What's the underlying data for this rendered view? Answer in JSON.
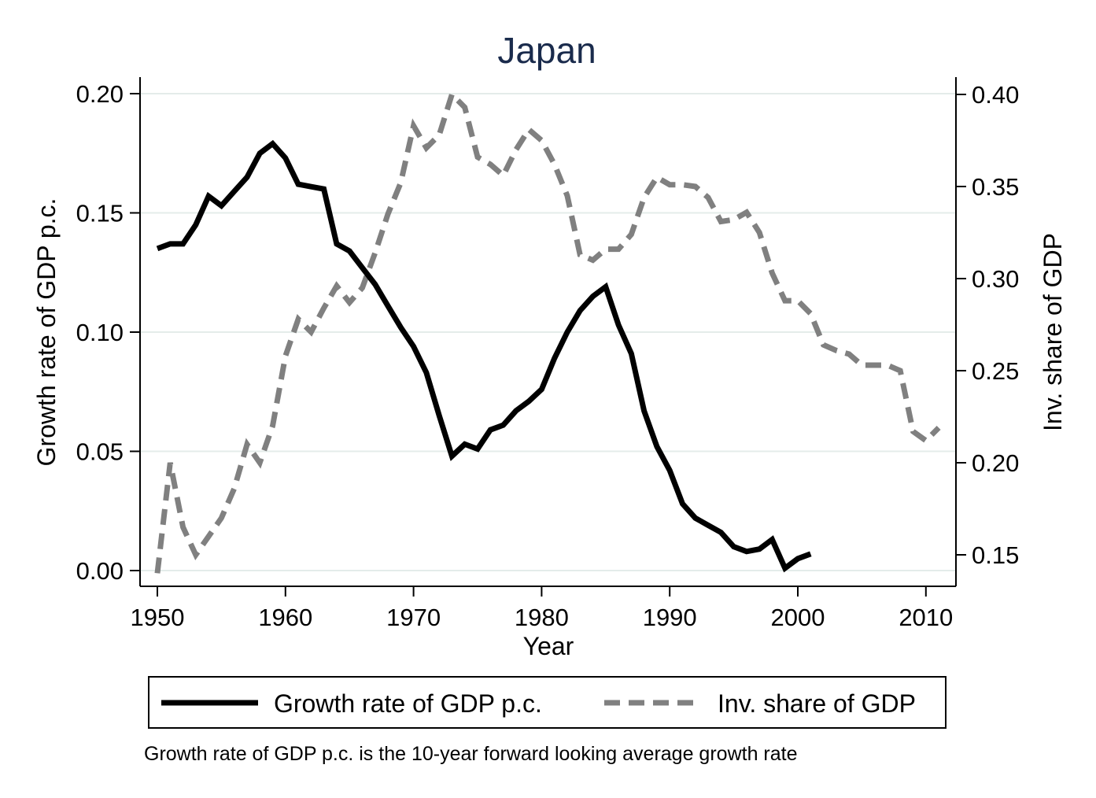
{
  "chart_data": {
    "type": "line",
    "title": "Japan",
    "xlabel": "Year",
    "ylabel": "Growth rate of GDP p.c.",
    "y2label": "Inv. share of GDP",
    "note": "Growth rate of GDP p.c. is the 10-year forward looking average growth rate",
    "xlim": [
      1950,
      2011
    ],
    "ylim": [
      0.0,
      0.2
    ],
    "y2lim": [
      0.15,
      0.4
    ],
    "x_ticks": [
      "1950",
      "1960",
      "1970",
      "1980",
      "1990",
      "2000",
      "2010"
    ],
    "y_ticks": [
      "0.00",
      "0.05",
      "0.10",
      "0.15",
      "0.20"
    ],
    "y2_ticks": [
      "0.15",
      "0.20",
      "0.25",
      "0.30",
      "0.35",
      "0.40"
    ],
    "legend_position": "bottom",
    "grid": true,
    "series": [
      {
        "name": "Growth rate of GDP p.c.",
        "axis": "left",
        "color": "#000000",
        "style": "solid",
        "x": [
          1950,
          1951,
          1952,
          1953,
          1954,
          1955,
          1956,
          1957,
          1958,
          1959,
          1960,
          1961,
          1962,
          1963,
          1964,
          1965,
          1966,
          1967,
          1968,
          1969,
          1970,
          1971,
          1972,
          1973,
          1974,
          1975,
          1976,
          1977,
          1978,
          1979,
          1980,
          1981,
          1982,
          1983,
          1984,
          1985,
          1986,
          1987,
          1988,
          1989,
          1990,
          1991,
          1992,
          1993,
          1994,
          1995,
          1996,
          1997,
          1998,
          1999,
          2000,
          2001
        ],
        "values": [
          0.135,
          0.137,
          0.137,
          0.145,
          0.157,
          0.153,
          0.159,
          0.165,
          0.175,
          0.179,
          0.173,
          0.162,
          0.161,
          0.16,
          0.137,
          0.134,
          0.127,
          0.12,
          0.111,
          0.102,
          0.094,
          0.083,
          0.065,
          0.048,
          0.053,
          0.051,
          0.059,
          0.061,
          0.067,
          0.071,
          0.076,
          0.089,
          0.1,
          0.109,
          0.115,
          0.119,
          0.103,
          0.091,
          0.067,
          0.052,
          0.042,
          0.028,
          0.022,
          0.019,
          0.016,
          0.01,
          0.008,
          0.009,
          0.013,
          0.001,
          0.005,
          0.007
        ]
      },
      {
        "name": "Inv. share of GDP",
        "axis": "right",
        "color": "#808080",
        "style": "dashed",
        "x": [
          1950,
          1951,
          1952,
          1953,
          1954,
          1955,
          1956,
          1957,
          1958,
          1959,
          1960,
          1961,
          1962,
          1963,
          1964,
          1965,
          1966,
          1967,
          1968,
          1969,
          1970,
          1971,
          1972,
          1973,
          1974,
          1975,
          1976,
          1977,
          1978,
          1979,
          1980,
          1981,
          1982,
          1983,
          1984,
          1985,
          1986,
          1987,
          1988,
          1989,
          1990,
          1991,
          1992,
          1993,
          1994,
          1995,
          1996,
          1997,
          1998,
          1999,
          2000,
          2001,
          2002,
          2003,
          2004,
          2005,
          2006,
          2007,
          2008,
          2009,
          2010,
          2011
        ],
        "values": [
          0.14,
          0.2,
          0.165,
          0.15,
          0.16,
          0.17,
          0.186,
          0.21,
          0.2,
          0.22,
          0.258,
          0.278,
          0.271,
          0.284,
          0.296,
          0.287,
          0.295,
          0.314,
          0.335,
          0.352,
          0.383,
          0.371,
          0.378,
          0.4,
          0.393,
          0.366,
          0.362,
          0.356,
          0.37,
          0.381,
          0.375,
          0.362,
          0.345,
          0.313,
          0.31,
          0.316,
          0.316,
          0.324,
          0.344,
          0.355,
          0.351,
          0.351,
          0.35,
          0.344,
          0.331,
          0.332,
          0.336,
          0.325,
          0.303,
          0.288,
          0.288,
          0.281,
          0.264,
          0.261,
          0.259,
          0.253,
          0.253,
          0.253,
          0.25,
          0.217,
          0.212,
          0.219
        ]
      }
    ]
  }
}
